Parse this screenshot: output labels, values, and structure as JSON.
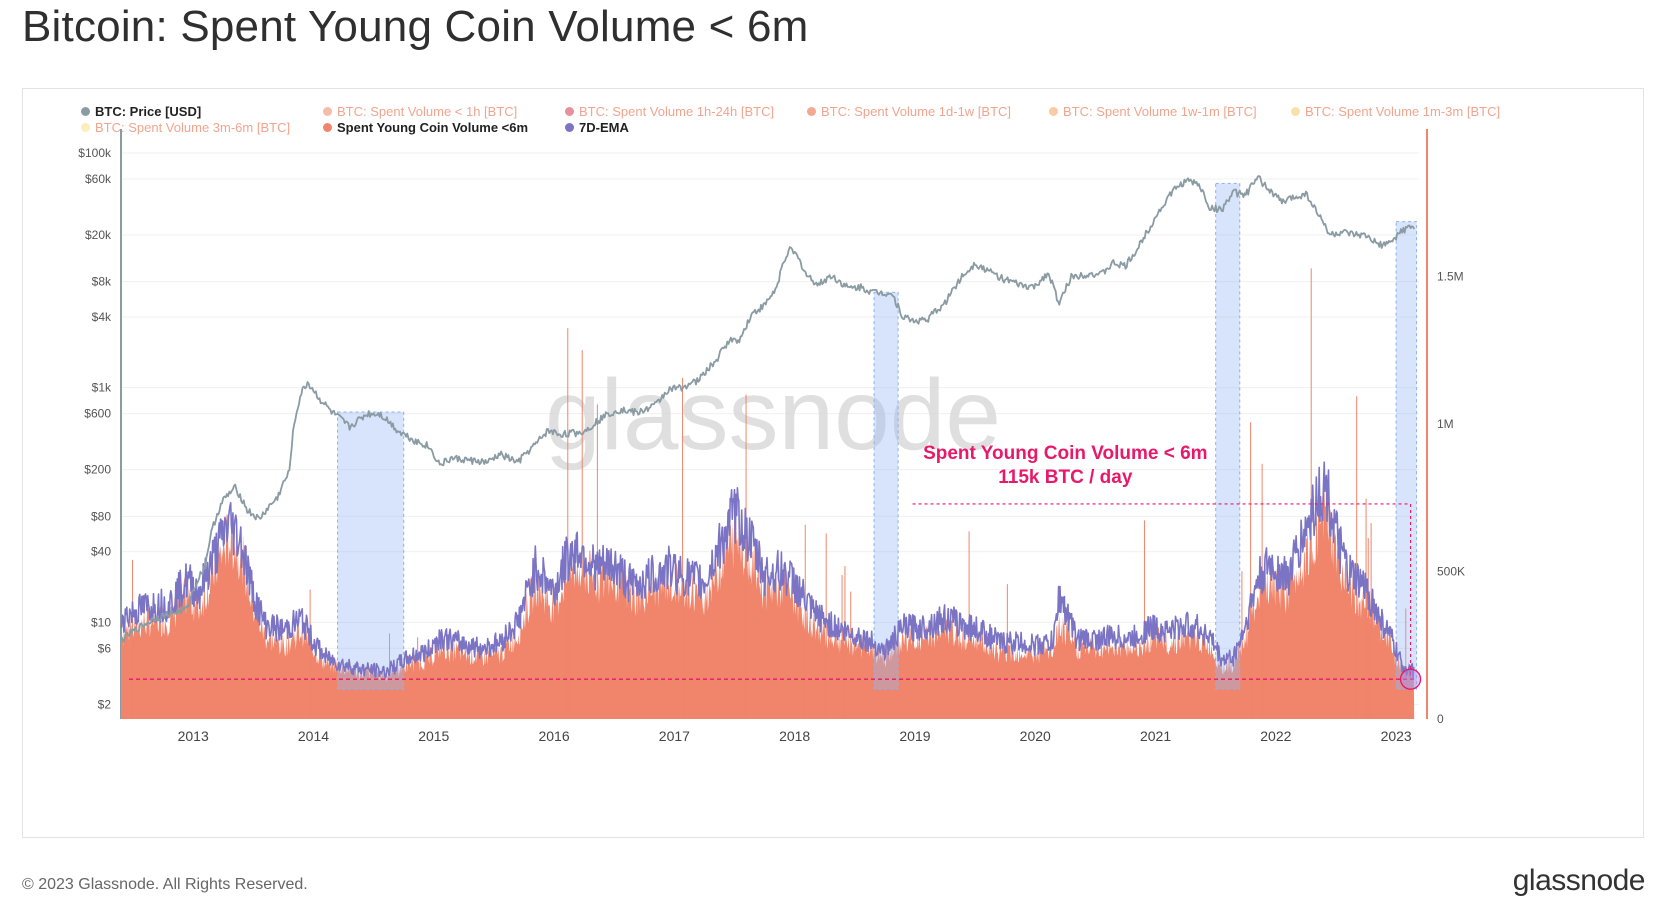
{
  "title": "Bitcoin: Spent Young Coin Volume < 6m",
  "footer": {
    "copyright": "© 2023 Glassnode. All Rights Reserved.",
    "brand": "glassnode"
  },
  "watermark": "glassnode",
  "legend": [
    {
      "label": "BTC: Price [USD]",
      "color": "#8a9ba3",
      "active": true
    },
    {
      "label": "BTC: Spent Volume < 1h [BTC]",
      "color": "#f3a58d",
      "active": false
    },
    {
      "label": "BTC: Spent Volume 1h-24h [BTC]",
      "color": "#e06b7a",
      "active": false
    },
    {
      "label": "BTC: Spent Volume 1d-1w [BTC]",
      "color": "#f08a6c",
      "active": false
    },
    {
      "label": "BTC: Spent Volume 1w-1m [BTC]",
      "color": "#f7b98a",
      "active": false
    },
    {
      "label": "BTC: Spent Volume 1m-3m [BTC]",
      "color": "#f8d68e",
      "active": false
    },
    {
      "label": "BTC: Spent Volume 3m-6m [BTC]",
      "color": "#f9e7a6",
      "active": false
    },
    {
      "label": "Spent Young Coin Volume <6m",
      "color": "#f0856b",
      "active": true
    },
    {
      "label": "7D-EMA",
      "color": "#7b74c4",
      "active": true
    }
  ],
  "annotation": {
    "line1": "Spent Young Coin Volume < 6m",
    "line2": "115k BTC / day",
    "color": "#e8196a"
  },
  "chart_data": {
    "type": "area",
    "x_ticks": [
      "2013",
      "2014",
      "2015",
      "2016",
      "2017",
      "2018",
      "2019",
      "2020",
      "2021",
      "2022",
      "2023"
    ],
    "y_left_scale": "log",
    "y_left_ticks": [
      "$100k",
      "$60k",
      "$20k",
      "$8k",
      "$4k",
      "$1k",
      "$600",
      "$200",
      "$80",
      "$40",
      "$10",
      "$6",
      "$2"
    ],
    "y_left_values": [
      100000,
      60000,
      20000,
      8000,
      4000,
      1000,
      600,
      200,
      80,
      40,
      10,
      6,
      2
    ],
    "y_right_ticks": [
      "1.5M",
      "1M",
      "500K",
      "0"
    ],
    "y_right_values": [
      1500000,
      1000000,
      500000,
      0
    ],
    "ylim_right": [
      0,
      2000000
    ],
    "ylim_left": [
      1.5,
      160000
    ],
    "threshold_line_volume": 135000,
    "highlight_ranges": [
      [
        2014.2,
        2014.75
      ],
      [
        2018.66,
        2018.86
      ],
      [
        2021.5,
        2021.7
      ],
      [
        2023.0,
        2023.17
      ]
    ],
    "series": [
      {
        "name": "BTC: Price [USD]",
        "color": "#8a9ba3",
        "points": [
          [
            2012.4,
            7
          ],
          [
            2012.7,
            11
          ],
          [
            2012.95,
            13
          ],
          [
            2013.1,
            30
          ],
          [
            2013.25,
            110
          ],
          [
            2013.35,
            140
          ],
          [
            2013.45,
            90
          ],
          [
            2013.55,
            75
          ],
          [
            2013.7,
            115
          ],
          [
            2013.8,
            190
          ],
          [
            2013.9,
            900
          ],
          [
            2013.95,
            1100
          ],
          [
            2014.05,
            800
          ],
          [
            2014.15,
            620
          ],
          [
            2014.3,
            460
          ],
          [
            2014.45,
            600
          ],
          [
            2014.55,
            600
          ],
          [
            2014.7,
            430
          ],
          [
            2014.85,
            350
          ],
          [
            2014.95,
            320
          ],
          [
            2015.05,
            220
          ],
          [
            2015.15,
            250
          ],
          [
            2015.3,
            240
          ],
          [
            2015.45,
            230
          ],
          [
            2015.55,
            270
          ],
          [
            2015.7,
            230
          ],
          [
            2015.85,
            330
          ],
          [
            2015.95,
            430
          ],
          [
            2016.05,
            400
          ],
          [
            2016.25,
            420
          ],
          [
            2016.45,
            600
          ],
          [
            2016.55,
            650
          ],
          [
            2016.7,
            610
          ],
          [
            2016.85,
            720
          ],
          [
            2016.95,
            960
          ],
          [
            2017.05,
            1000
          ],
          [
            2017.2,
            1150
          ],
          [
            2017.35,
            1700
          ],
          [
            2017.45,
            2500
          ],
          [
            2017.55,
            2600
          ],
          [
            2017.65,
            4300
          ],
          [
            2017.75,
            5000
          ],
          [
            2017.85,
            7000
          ],
          [
            2017.95,
            15000
          ],
          [
            2018.0,
            14000
          ],
          [
            2018.1,
            9000
          ],
          [
            2018.2,
            7500
          ],
          [
            2018.3,
            9000
          ],
          [
            2018.45,
            7000
          ],
          [
            2018.55,
            7200
          ],
          [
            2018.65,
            6500
          ],
          [
            2018.8,
            6400
          ],
          [
            2018.9,
            4000
          ],
          [
            2019.0,
            3700
          ],
          [
            2019.1,
            3800
          ],
          [
            2019.25,
            5200
          ],
          [
            2019.4,
            9000
          ],
          [
            2019.5,
            11500
          ],
          [
            2019.6,
            10000
          ],
          [
            2019.75,
            8300
          ],
          [
            2019.9,
            7300
          ],
          [
            2020.0,
            7200
          ],
          [
            2020.1,
            9500
          ],
          [
            2020.2,
            5000
          ],
          [
            2020.3,
            8800
          ],
          [
            2020.45,
            9400
          ],
          [
            2020.55,
            9200
          ],
          [
            2020.65,
            11500
          ],
          [
            2020.75,
            10800
          ],
          [
            2020.85,
            15000
          ],
          [
            2020.95,
            23000
          ],
          [
            2021.05,
            34000
          ],
          [
            2021.15,
            48000
          ],
          [
            2021.25,
            58000
          ],
          [
            2021.35,
            55000
          ],
          [
            2021.45,
            34000
          ],
          [
            2021.55,
            33000
          ],
          [
            2021.65,
            46000
          ],
          [
            2021.75,
            44000
          ],
          [
            2021.85,
            61000
          ],
          [
            2021.95,
            48000
          ],
          [
            2022.05,
            38000
          ],
          [
            2022.15,
            42000
          ],
          [
            2022.25,
            45000
          ],
          [
            2022.35,
            30000
          ],
          [
            2022.45,
            20000
          ],
          [
            2022.55,
            21000
          ],
          [
            2022.65,
            20000
          ],
          [
            2022.75,
            19500
          ],
          [
            2022.85,
            16500
          ],
          [
            2022.95,
            16800
          ],
          [
            2023.05,
            22000
          ],
          [
            2023.12,
            23500
          ],
          [
            2023.15,
            23000
          ]
        ]
      },
      {
        "name": "Spent Young Coin Volume <6m",
        "color": "#f0856b",
        "points": [
          [
            2012.4,
            290000
          ],
          [
            2012.6,
            330000
          ],
          [
            2012.8,
            340000
          ],
          [
            2012.95,
            420000
          ],
          [
            2013.05,
            380000
          ],
          [
            2013.15,
            480000
          ],
          [
            2013.3,
            620000
          ],
          [
            2013.4,
            560000
          ],
          [
            2013.5,
            380000
          ],
          [
            2013.6,
            280000
          ],
          [
            2013.75,
            250000
          ],
          [
            2013.9,
            300000
          ],
          [
            2014.0,
            240000
          ],
          [
            2014.1,
            190000
          ],
          [
            2014.2,
            180000
          ],
          [
            2014.4,
            160000
          ],
          [
            2014.6,
            150000
          ],
          [
            2014.8,
            190000
          ],
          [
            2014.95,
            200000
          ],
          [
            2015.05,
            240000
          ],
          [
            2015.2,
            230000
          ],
          [
            2015.4,
            210000
          ],
          [
            2015.55,
            220000
          ],
          [
            2015.7,
            290000
          ],
          [
            2015.85,
            460000
          ],
          [
            2016.0,
            380000
          ],
          [
            2016.1,
            480000
          ],
          [
            2016.2,
            520000
          ],
          [
            2016.35,
            470000
          ],
          [
            2016.5,
            480000
          ],
          [
            2016.65,
            410000
          ],
          [
            2016.8,
            440000
          ],
          [
            2016.95,
            470000
          ],
          [
            2017.1,
            440000
          ],
          [
            2017.25,
            420000
          ],
          [
            2017.35,
            500000
          ],
          [
            2017.5,
            620000
          ],
          [
            2017.6,
            580000
          ],
          [
            2017.75,
            440000
          ],
          [
            2017.9,
            450000
          ],
          [
            2018.0,
            410000
          ],
          [
            2018.15,
            320000
          ],
          [
            2018.3,
            280000
          ],
          [
            2018.45,
            260000
          ],
          [
            2018.6,
            240000
          ],
          [
            2018.75,
            210000
          ],
          [
            2018.9,
            270000
          ],
          [
            2019.05,
            270000
          ],
          [
            2019.25,
            300000
          ],
          [
            2019.4,
            280000
          ],
          [
            2019.55,
            270000
          ],
          [
            2019.7,
            230000
          ],
          [
            2019.85,
            230000
          ],
          [
            2020.0,
            220000
          ],
          [
            2020.15,
            230000
          ],
          [
            2020.2,
            310000
          ],
          [
            2020.35,
            240000
          ],
          [
            2020.5,
            240000
          ],
          [
            2020.65,
            250000
          ],
          [
            2020.8,
            240000
          ],
          [
            2020.95,
            270000
          ],
          [
            2021.1,
            260000
          ],
          [
            2021.3,
            280000
          ],
          [
            2021.45,
            250000
          ],
          [
            2021.55,
            180000
          ],
          [
            2021.65,
            190000
          ],
          [
            2021.75,
            280000
          ],
          [
            2021.85,
            420000
          ],
          [
            2021.95,
            460000
          ],
          [
            2022.1,
            430000
          ],
          [
            2022.25,
            560000
          ],
          [
            2022.35,
            660000
          ],
          [
            2022.42,
            700000
          ],
          [
            2022.5,
            560000
          ],
          [
            2022.6,
            440000
          ],
          [
            2022.75,
            400000
          ],
          [
            2022.85,
            320000
          ],
          [
            2022.95,
            260000
          ],
          [
            2023.05,
            170000
          ],
          [
            2023.15,
            160000
          ]
        ]
      },
      {
        "name": "7D-EMA",
        "color": "#7b74c4",
        "points": [
          [
            2012.4,
            340000
          ],
          [
            2012.6,
            380000
          ],
          [
            2012.8,
            390000
          ],
          [
            2012.95,
            470000
          ],
          [
            2013.05,
            430000
          ],
          [
            2013.15,
            530000
          ],
          [
            2013.3,
            670000
          ],
          [
            2013.4,
            600000
          ],
          [
            2013.5,
            420000
          ],
          [
            2013.6,
            320000
          ],
          [
            2013.75,
            300000
          ],
          [
            2013.9,
            340000
          ],
          [
            2014.0,
            260000
          ],
          [
            2014.1,
            210000
          ],
          [
            2014.2,
            190000
          ],
          [
            2014.4,
            170000
          ],
          [
            2014.6,
            160000
          ],
          [
            2014.8,
            210000
          ],
          [
            2014.95,
            230000
          ],
          [
            2015.05,
            280000
          ],
          [
            2015.2,
            260000
          ],
          [
            2015.4,
            240000
          ],
          [
            2015.55,
            260000
          ],
          [
            2015.7,
            330000
          ],
          [
            2015.85,
            520000
          ],
          [
            2016.0,
            430000
          ],
          [
            2016.1,
            540000
          ],
          [
            2016.2,
            580000
          ],
          [
            2016.35,
            510000
          ],
          [
            2016.5,
            520000
          ],
          [
            2016.65,
            450000
          ],
          [
            2016.8,
            480000
          ],
          [
            2016.95,
            510000
          ],
          [
            2017.1,
            480000
          ],
          [
            2017.25,
            460000
          ],
          [
            2017.35,
            560000
          ],
          [
            2017.5,
            700000
          ],
          [
            2017.6,
            630000
          ],
          [
            2017.75,
            490000
          ],
          [
            2017.9,
            500000
          ],
          [
            2018.0,
            460000
          ],
          [
            2018.15,
            360000
          ],
          [
            2018.3,
            320000
          ],
          [
            2018.45,
            290000
          ],
          [
            2018.6,
            270000
          ],
          [
            2018.75,
            230000
          ],
          [
            2018.9,
            310000
          ],
          [
            2019.05,
            310000
          ],
          [
            2019.25,
            340000
          ],
          [
            2019.4,
            320000
          ],
          [
            2019.55,
            300000
          ],
          [
            2019.7,
            260000
          ],
          [
            2019.85,
            260000
          ],
          [
            2020.0,
            250000
          ],
          [
            2020.15,
            260000
          ],
          [
            2020.2,
            420000
          ],
          [
            2020.35,
            270000
          ],
          [
            2020.5,
            270000
          ],
          [
            2020.65,
            280000
          ],
          [
            2020.8,
            270000
          ],
          [
            2020.95,
            310000
          ],
          [
            2021.1,
            300000
          ],
          [
            2021.3,
            320000
          ],
          [
            2021.45,
            280000
          ],
          [
            2021.55,
            200000
          ],
          [
            2021.65,
            210000
          ],
          [
            2021.75,
            320000
          ],
          [
            2021.85,
            470000
          ],
          [
            2021.95,
            520000
          ],
          [
            2022.1,
            480000
          ],
          [
            2022.25,
            640000
          ],
          [
            2022.35,
            760000
          ],
          [
            2022.42,
            780000
          ],
          [
            2022.5,
            620000
          ],
          [
            2022.6,
            490000
          ],
          [
            2022.75,
            440000
          ],
          [
            2022.85,
            350000
          ],
          [
            2022.95,
            280000
          ],
          [
            2023.05,
            180000
          ],
          [
            2023.15,
            160000
          ]
        ]
      }
    ]
  }
}
